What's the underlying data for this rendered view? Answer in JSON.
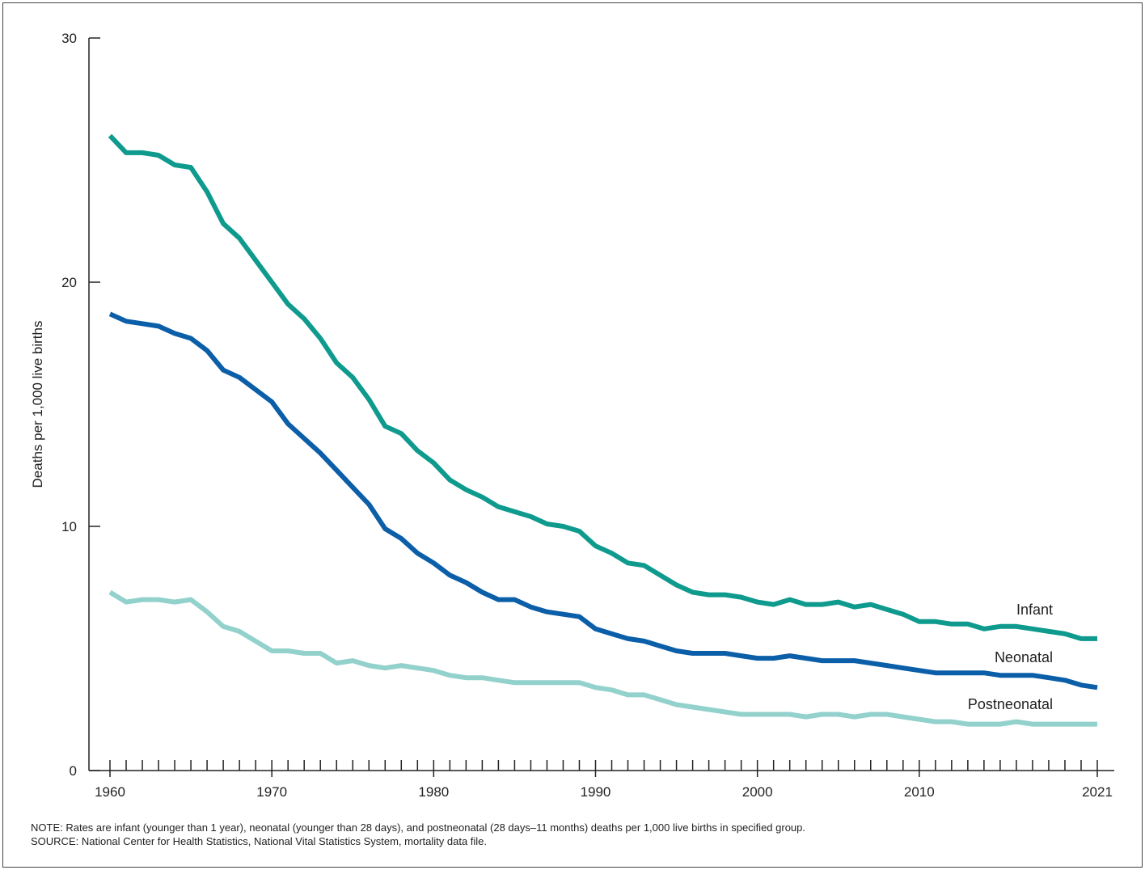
{
  "chart_data": {
    "type": "line",
    "title": "",
    "xlabel": "",
    "ylabel": "Deaths per 1,000 live births",
    "xlim": [
      1960,
      2021
    ],
    "ylim": [
      0,
      30
    ],
    "y_ticks": [
      0,
      10,
      20,
      30
    ],
    "x_tick_labels": [
      1960,
      1970,
      1980,
      1990,
      2000,
      2010,
      2021
    ],
    "grid": false,
    "legend": "inline labels at right end of lines",
    "x": [
      1960,
      1961,
      1962,
      1963,
      1964,
      1965,
      1966,
      1967,
      1968,
      1969,
      1970,
      1971,
      1972,
      1973,
      1974,
      1975,
      1976,
      1977,
      1978,
      1979,
      1980,
      1981,
      1982,
      1983,
      1984,
      1985,
      1986,
      1987,
      1988,
      1989,
      1990,
      1991,
      1992,
      1993,
      1994,
      1995,
      1996,
      1997,
      1998,
      1999,
      2000,
      2001,
      2002,
      2003,
      2004,
      2005,
      2006,
      2007,
      2008,
      2009,
      2010,
      2011,
      2012,
      2013,
      2014,
      2015,
      2016,
      2017,
      2018,
      2019,
      2020,
      2021
    ],
    "series": [
      {
        "name": "Infant",
        "color": "#0f9a8e",
        "values": [
          26.0,
          25.3,
          25.3,
          25.2,
          24.8,
          24.7,
          23.7,
          22.4,
          21.8,
          20.9,
          20.0,
          19.1,
          18.5,
          17.7,
          16.7,
          16.1,
          15.2,
          14.1,
          13.8,
          13.1,
          12.6,
          11.9,
          11.5,
          11.2,
          10.8,
          10.6,
          10.4,
          10.1,
          10.0,
          9.8,
          9.2,
          8.9,
          8.5,
          8.4,
          8.0,
          7.6,
          7.3,
          7.2,
          7.2,
          7.1,
          6.9,
          6.8,
          7.0,
          6.8,
          6.8,
          6.9,
          6.7,
          6.8,
          6.6,
          6.4,
          6.1,
          6.1,
          6.0,
          6.0,
          5.8,
          5.9,
          5.9,
          5.8,
          5.7,
          5.6,
          5.4,
          5.4
        ]
      },
      {
        "name": "Neonatal",
        "color": "#0b5ea8",
        "values": [
          18.7,
          18.4,
          18.3,
          18.2,
          17.9,
          17.7,
          17.2,
          16.4,
          16.1,
          15.6,
          15.1,
          14.2,
          13.6,
          13.0,
          12.3,
          11.6,
          10.9,
          9.9,
          9.5,
          8.9,
          8.5,
          8.0,
          7.7,
          7.3,
          7.0,
          7.0,
          6.7,
          6.5,
          6.4,
          6.3,
          5.8,
          5.6,
          5.4,
          5.3,
          5.1,
          4.9,
          4.8,
          4.8,
          4.8,
          4.7,
          4.6,
          4.6,
          4.7,
          4.6,
          4.5,
          4.5,
          4.5,
          4.4,
          4.3,
          4.2,
          4.1,
          4.0,
          4.0,
          4.0,
          4.0,
          3.9,
          3.9,
          3.9,
          3.8,
          3.7,
          3.5,
          3.4
        ]
      },
      {
        "name": "Postneonatal",
        "color": "#92d1cc",
        "values": [
          7.3,
          6.9,
          7.0,
          7.0,
          6.9,
          7.0,
          6.5,
          5.9,
          5.7,
          5.3,
          4.9,
          4.9,
          4.8,
          4.8,
          4.4,
          4.5,
          4.3,
          4.2,
          4.3,
          4.2,
          4.1,
          3.9,
          3.8,
          3.8,
          3.7,
          3.6,
          3.6,
          3.6,
          3.6,
          3.6,
          3.4,
          3.3,
          3.1,
          3.1,
          2.9,
          2.7,
          2.6,
          2.5,
          2.4,
          2.3,
          2.3,
          2.3,
          2.3,
          2.2,
          2.3,
          2.3,
          2.2,
          2.3,
          2.3,
          2.2,
          2.1,
          2.0,
          2.0,
          1.9,
          1.9,
          1.9,
          2.0,
          1.9,
          1.9,
          1.9,
          1.9,
          1.9
        ]
      }
    ]
  },
  "notes": {
    "note": "NOTE: Rates are infant (younger than 1 year), neonatal (younger than 28 days), and postneonatal (28 days–11 months) deaths per 1,000 live births in specified group.",
    "source": "SOURCE: National Center for Health Statistics, National Vital Statistics System, mortality data file."
  }
}
